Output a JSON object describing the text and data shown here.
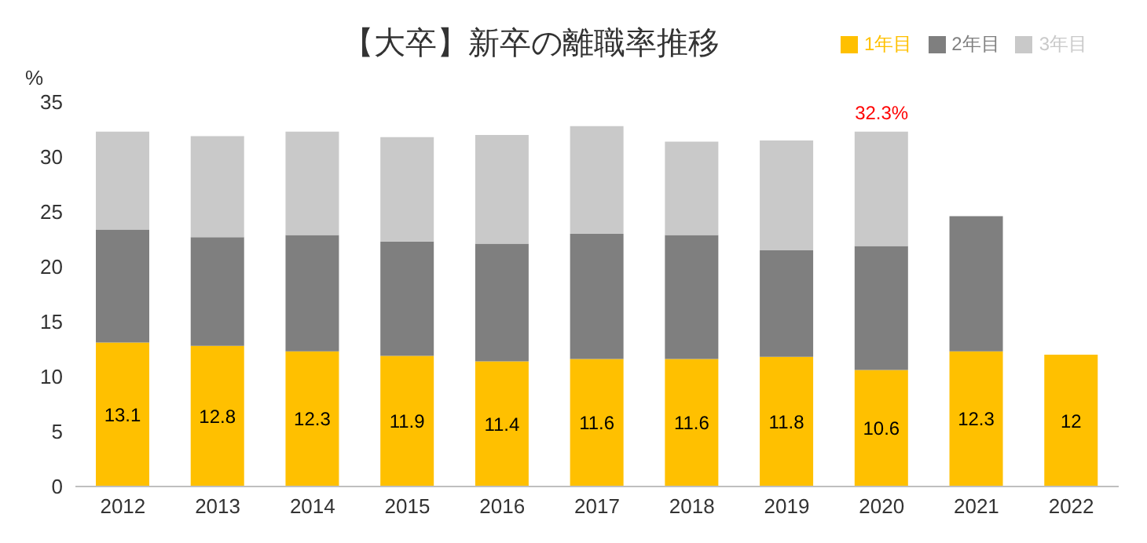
{
  "chart_data": {
    "type": "bar",
    "stacked": true,
    "title": "【大卒】新卒の離職率推移",
    "ylabel": "%",
    "categories": [
      "2012",
      "2013",
      "2014",
      "2015",
      "2016",
      "2017",
      "2018",
      "2019",
      "2020",
      "2021",
      "2022"
    ],
    "series": [
      {
        "name": "1年目",
        "color": "#ffc000",
        "values": [
          13.1,
          12.8,
          12.3,
          11.9,
          11.4,
          11.6,
          11.6,
          11.8,
          10.6,
          12.3,
          12
        ],
        "value_labels": [
          "13.1",
          "12.8",
          "12.3",
          "11.9",
          "11.4",
          "11.6",
          "11.6",
          "11.8",
          "10.6",
          "12.3",
          "12"
        ]
      },
      {
        "name": "2年目",
        "color": "#7f7f7f",
        "values": [
          10.3,
          9.9,
          10.6,
          10.4,
          10.7,
          11.4,
          11.3,
          9.7,
          11.3,
          12.3,
          null
        ]
      },
      {
        "name": "3年目",
        "color": "#c9c9c9",
        "values": [
          8.9,
          9.2,
          9.4,
          9.5,
          9.9,
          9.8,
          8.5,
          10.0,
          10.4,
          null,
          null
        ]
      }
    ],
    "ylim": [
      0,
      35
    ],
    "yticks": [
      0,
      5,
      10,
      15,
      20,
      25,
      30,
      35
    ],
    "grid": false,
    "legend": "top right",
    "annotations": [
      {
        "text": "32.3%",
        "x": "2020",
        "y": 32.3
      }
    ]
  }
}
